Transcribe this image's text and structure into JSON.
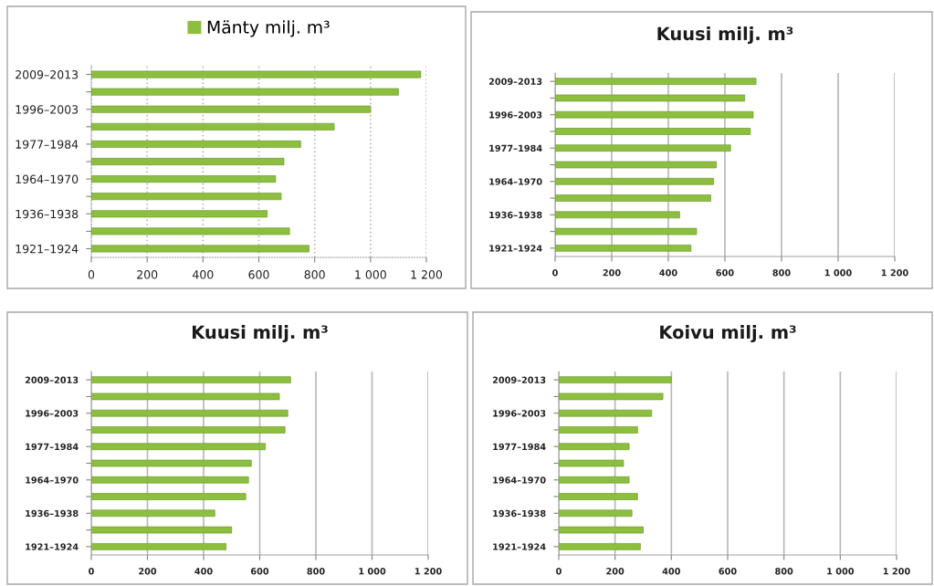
{
  "chart_data": [
    {
      "type": "bar",
      "orientation": "horizontal",
      "categories": [
        "2009–2013",
        null,
        "1996–2003",
        null,
        "1977–1984",
        null,
        "1964–1970",
        null,
        "1936–1938",
        null,
        "1921–1924"
      ],
      "series": [
        {
          "name": "Mänty milj. m³",
          "color": "#8cbf3f",
          "values": [
            1180,
            1100,
            1000,
            870,
            750,
            690,
            660,
            680,
            630,
            710,
            780
          ]
        }
      ],
      "legend": "top",
      "xlim": [
        0,
        1200
      ],
      "xticks": [
        0,
        200,
        400,
        600,
        800,
        1000,
        1200
      ],
      "grid": "x"
    },
    {
      "type": "bar",
      "orientation": "horizontal",
      "title": "Kuusi milj. m³",
      "categories": [
        "2009–2013",
        null,
        "1996–2003",
        null,
        "1977–1984",
        null,
        "1964–1970",
        null,
        "1936–1938",
        null,
        "1921–1924"
      ],
      "series": [
        {
          "color": "#8cbf3f",
          "values": [
            710,
            670,
            700,
            690,
            620,
            570,
            560,
            550,
            440,
            500,
            480
          ]
        }
      ],
      "xlim": [
        0,
        1200
      ],
      "xticks": [
        0,
        200,
        400,
        600,
        800,
        1000,
        1200
      ],
      "grid": "x"
    },
    {
      "type": "bar",
      "orientation": "horizontal",
      "title": "Kuusi milj. m³",
      "categories": [
        "2009–2013",
        null,
        "1996–2003",
        null,
        "1977–1984",
        null,
        "1964–1970",
        null,
        "1936–1938",
        null,
        "1921–1924"
      ],
      "series": [
        {
          "color": "#8cbf3f",
          "values": [
            710,
            670,
            700,
            690,
            620,
            570,
            560,
            550,
            440,
            500,
            480
          ]
        }
      ],
      "xlim": [
        0,
        1200
      ],
      "xticks": [
        0,
        200,
        400,
        600,
        800,
        1000,
        1200
      ],
      "grid": "x"
    },
    {
      "type": "bar",
      "orientation": "horizontal",
      "title": "Koivu milj. m³",
      "categories": [
        "2009–2013",
        null,
        "1996–2003",
        null,
        "1977–1984",
        null,
        "1964–1970",
        null,
        "1936–1938",
        null,
        "1921–1924"
      ],
      "series": [
        {
          "color": "#8cbf3f",
          "values": [
            400,
            370,
            330,
            280,
            250,
            230,
            250,
            280,
            260,
            300,
            290
          ]
        }
      ],
      "xlim": [
        0,
        1200
      ],
      "xticks": [
        0,
        200,
        400,
        600,
        800,
        1000,
        1200
      ],
      "grid": "x"
    }
  ]
}
